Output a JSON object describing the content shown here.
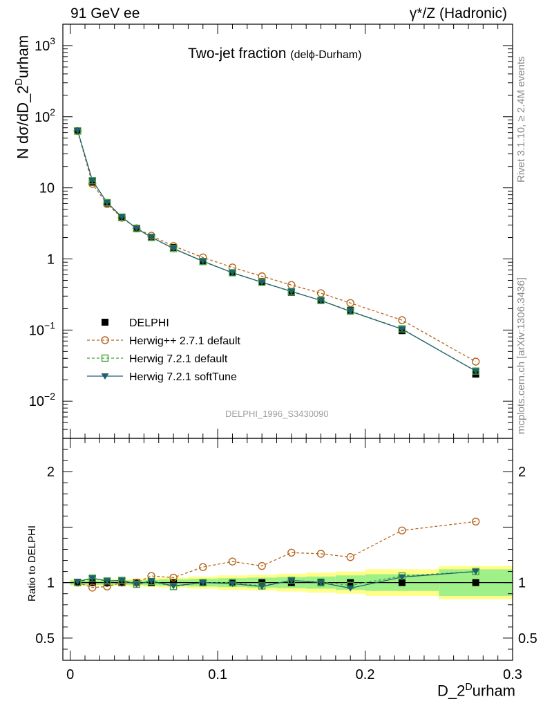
{
  "header": {
    "left": "91 GeV ee",
    "right": "γ*/Z (Hadronic)"
  },
  "title": {
    "main": "Two-jet fraction",
    "sub": "(delϕ-Durham)"
  },
  "axes": {
    "ylabel_main": "N dσ/dD_2",
    "ylabel_main_sup": "D",
    "ylabel_main_tail": "urham",
    "ylabel_ratio": "Ratio to DELPHI",
    "xlabel": "D_2",
    "xlabel_sup": "D",
    "xlabel_tail": "urham"
  },
  "side": {
    "rivet": "Rivet 3.1.10, ≥ 2.4M events",
    "mcplots": "mcplots.cern.ch [arXiv:1306.3436]"
  },
  "analysis_id": "DELPHI_1996_S3430090",
  "legend": [
    {
      "label": "DELPHI"
    },
    {
      "label": "Herwig++ 2.7.1 default"
    },
    {
      "label": "Herwig 7.2.1 default"
    },
    {
      "label": "Herwig 7.2.1 softTune"
    }
  ],
  "colors": {
    "data": "#000000",
    "herwigpp": "#b5651d",
    "herwig7_default": "#3fa535",
    "herwig7_soft": "#1f5f6f",
    "band_inner": "#a0f08a",
    "band_outer": "#fefe88"
  },
  "chart_data": {
    "type": "line",
    "x_scale": "linear",
    "y_scale_main": "log",
    "xlim": [
      -0.005,
      0.3
    ],
    "ylim_main": [
      0.003,
      2000
    ],
    "ylim_ratio": [
      0.3,
      2.3
    ],
    "x_ticks": [
      {
        "v": 0,
        "label": "0"
      },
      {
        "v": 0.1,
        "label": "0.1"
      },
      {
        "v": 0.2,
        "label": "0.2"
      },
      {
        "v": 0.3,
        "label": "0.3"
      }
    ],
    "y_ticks_main": [
      {
        "v": 0.01,
        "base": "10",
        "exp": "−2"
      },
      {
        "v": 0.1,
        "base": "10",
        "exp": "−1"
      },
      {
        "v": 1,
        "base": "1",
        "exp": ""
      },
      {
        "v": 10,
        "base": "10",
        "exp": ""
      },
      {
        "v": 100,
        "base": "10",
        "exp": "2"
      },
      {
        "v": 1000,
        "base": "10",
        "exp": "3"
      }
    ],
    "y_ticks_ratio": [
      {
        "v": 0.5,
        "label": "0.5"
      },
      {
        "v": 1,
        "label": "1"
      },
      {
        "v": 2,
        "label": "2"
      }
    ],
    "bins": [
      {
        "lo": 0.0,
        "hi": 0.01
      },
      {
        "lo": 0.01,
        "hi": 0.02
      },
      {
        "lo": 0.02,
        "hi": 0.03
      },
      {
        "lo": 0.03,
        "hi": 0.04
      },
      {
        "lo": 0.04,
        "hi": 0.05
      },
      {
        "lo": 0.05,
        "hi": 0.06
      },
      {
        "lo": 0.06,
        "hi": 0.08
      },
      {
        "lo": 0.08,
        "hi": 0.1
      },
      {
        "lo": 0.1,
        "hi": 0.12
      },
      {
        "lo": 0.12,
        "hi": 0.14
      },
      {
        "lo": 0.14,
        "hi": 0.16
      },
      {
        "lo": 0.16,
        "hi": 0.18
      },
      {
        "lo": 0.18,
        "hi": 0.2
      },
      {
        "lo": 0.2,
        "hi": 0.25
      },
      {
        "lo": 0.25,
        "hi": 0.3
      }
    ],
    "x": [
      0.005,
      0.015,
      0.025,
      0.035,
      0.045,
      0.055,
      0.07,
      0.09,
      0.11,
      0.13,
      0.15,
      0.17,
      0.19,
      0.225,
      0.275
    ],
    "series": [
      {
        "name": "DELPHI",
        "values": [
          63,
          12.0,
          6.1,
          3.8,
          2.7,
          2.0,
          1.45,
          0.92,
          0.64,
          0.48,
          0.34,
          0.26,
          0.19,
          0.098,
          0.024
        ]
      },
      {
        "name": "Herwig++ 2.7.1 default",
        "values": [
          63,
          11.4,
          5.9,
          3.8,
          2.7,
          2.12,
          1.52,
          1.05,
          0.76,
          0.57,
          0.43,
          0.33,
          0.24,
          0.138,
          0.036
        ]
      },
      {
        "name": "Herwig 7.2.1 default",
        "values": [
          63,
          12.6,
          6.2,
          3.87,
          2.66,
          2.02,
          1.4,
          0.92,
          0.64,
          0.47,
          0.346,
          0.262,
          0.185,
          0.104,
          0.0265
        ]
      },
      {
        "name": "Herwig 7.2.1 softTune",
        "values": [
          64,
          12.7,
          6.2,
          3.9,
          2.68,
          2.03,
          1.4,
          0.93,
          0.64,
          0.47,
          0.35,
          0.26,
          0.183,
          0.103,
          0.0265
        ]
      }
    ],
    "ratio_series": [
      {
        "name": "Herwig++ 2.7.1 default",
        "values": [
          1.0,
          0.955,
          0.965,
          1.0,
          1.0,
          1.06,
          1.045,
          1.14,
          1.19,
          1.15,
          1.27,
          1.26,
          1.23,
          1.47,
          1.55
        ]
      },
      {
        "name": "Herwig 7.2.1 default",
        "values": [
          1.0,
          1.04,
          1.015,
          1.02,
          0.985,
          1.01,
          0.965,
          1.0,
          1.0,
          0.97,
          1.02,
          1.005,
          0.975,
          1.06,
          1.1
        ]
      },
      {
        "name": "Herwig 7.2.1 softTune",
        "values": [
          1.01,
          1.04,
          1.015,
          1.02,
          0.985,
          1.015,
          0.97,
          1.0,
          0.99,
          0.965,
          1.02,
          1.0,
          0.95,
          1.05,
          1.1
        ]
      }
    ],
    "ratio_band_inner": [
      0.02,
      0.02,
      0.02,
      0.02,
      0.02,
      0.025,
      0.03,
      0.035,
      0.04,
      0.045,
      0.05,
      0.055,
      0.065,
      0.075,
      0.12
    ],
    "ratio_band_outer": [
      0.03,
      0.03,
      0.03,
      0.03,
      0.035,
      0.04,
      0.045,
      0.055,
      0.065,
      0.07,
      0.08,
      0.09,
      0.1,
      0.12,
      0.15
    ]
  }
}
